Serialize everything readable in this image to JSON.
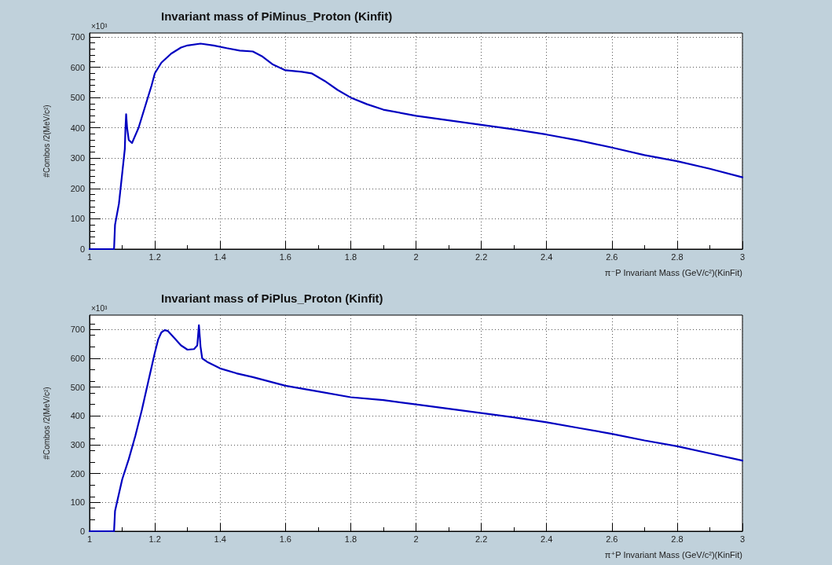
{
  "chart_data": [
    {
      "type": "line",
      "title": "Invariant mass of PiMinus_Proton (Kinfit)",
      "xlabel": "π⁻P Invariant Mass (GeV/c²)(KinFit)",
      "ylabel": "#Combos /2(MeV/c²)",
      "annotations": [
        "×10³"
      ],
      "series": [
        {
          "color": "#0000c0",
          "x": [
            1.0,
            1.075,
            1.078,
            1.09,
            1.1,
            1.108,
            1.11,
            1.112,
            1.115,
            1.12,
            1.13,
            1.14,
            1.15,
            1.17,
            1.19,
            1.2,
            1.22,
            1.25,
            1.28,
            1.3,
            1.34,
            1.38,
            1.42,
            1.46,
            1.5,
            1.53,
            1.56,
            1.6,
            1.65,
            1.68,
            1.72,
            1.76,
            1.8,
            1.85,
            1.9,
            2.0,
            2.1,
            2.2,
            2.3,
            2.4,
            2.5,
            2.6,
            2.7,
            2.8,
            2.9,
            3.0
          ],
          "values": [
            0,
            0,
            80,
            150,
            250,
            330,
            400,
            445,
            400,
            360,
            350,
            375,
            400,
            470,
            540,
            580,
            615,
            645,
            665,
            672,
            678,
            672,
            663,
            655,
            652,
            635,
            610,
            590,
            585,
            580,
            555,
            525,
            500,
            478,
            460,
            440,
            425,
            410,
            395,
            378,
            358,
            335,
            310,
            290,
            265,
            237
          ]
        }
      ],
      "xlim": [
        1,
        3
      ],
      "xticks": [
        1,
        1.2,
        1.4,
        1.6,
        1.8,
        2,
        2.2,
        2.4,
        2.6,
        2.8,
        3
      ],
      "ylim": [
        0,
        713
      ],
      "yticks": [
        0,
        100,
        200,
        300,
        400,
        500,
        600,
        700
      ],
      "grid": true,
      "marker": "none",
      "line_style": "solid"
    },
    {
      "type": "line",
      "title": "Invariant mass of PiPlus_Proton (Kinfit)",
      "xlabel": "π⁺P Invariant Mass (GeV/c²)(KinFit)",
      "ylabel": "#Combos /2(MeV/c²)",
      "annotations": [
        "×10³"
      ],
      "series": [
        {
          "color": "#0000c0",
          "x": [
            1.0,
            1.075,
            1.078,
            1.09,
            1.1,
            1.12,
            1.14,
            1.16,
            1.18,
            1.2,
            1.21,
            1.22,
            1.23,
            1.24,
            1.26,
            1.28,
            1.3,
            1.32,
            1.33,
            1.335,
            1.34,
            1.345,
            1.36,
            1.4,
            1.45,
            1.5,
            1.6,
            1.7,
            1.8,
            1.9,
            2.0,
            2.1,
            2.2,
            2.3,
            2.4,
            2.5,
            2.6,
            2.7,
            2.8,
            2.9,
            3.0
          ],
          "values": [
            0,
            0,
            70,
            130,
            180,
            250,
            330,
            420,
            520,
            620,
            665,
            690,
            698,
            695,
            670,
            645,
            630,
            632,
            645,
            715,
            640,
            600,
            588,
            565,
            548,
            535,
            505,
            485,
            465,
            455,
            440,
            425,
            410,
            395,
            378,
            358,
            338,
            315,
            295,
            270,
            245
          ]
        }
      ],
      "xlim": [
        1,
        3
      ],
      "xticks": [
        1,
        1.2,
        1.4,
        1.6,
        1.8,
        2,
        2.2,
        2.4,
        2.6,
        2.8,
        3
      ],
      "ylim": [
        0,
        750
      ],
      "yticks": [
        0,
        100,
        200,
        300,
        400,
        500,
        600,
        700
      ],
      "grid": true,
      "marker": "none",
      "line_style": "solid"
    }
  ]
}
